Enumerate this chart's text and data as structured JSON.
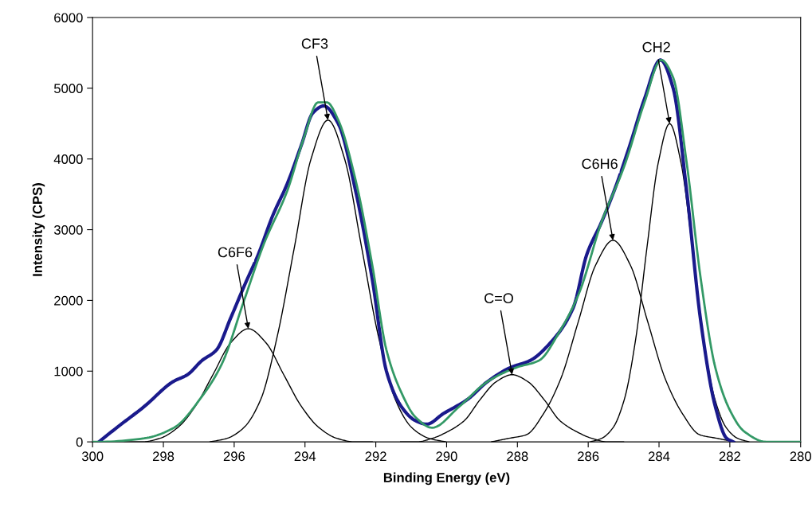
{
  "chart_data": {
    "type": "line",
    "xlabel": "Binding Energy (eV)",
    "ylabel": "Intensity (CPS)",
    "xlim": [
      300,
      280
    ],
    "xticks": [
      300,
      298,
      296,
      294,
      292,
      290,
      288,
      286,
      284,
      282,
      280
    ],
    "ylim": [
      0,
      6000
    ],
    "yticks": [
      0,
      1000,
      2000,
      3000,
      4000,
      5000,
      6000
    ],
    "grid": false,
    "legend": false,
    "marker": "none",
    "line_style": "solid",
    "series": [
      {
        "color": "#1a1a8c",
        "x": [
          299.82,
          299.32,
          298.54,
          297.73,
          297.32,
          296.91,
          296.5,
          296.1,
          295.72,
          295.32,
          294.91,
          294.5,
          294.1,
          293.78,
          293.47,
          293.06,
          292.57,
          292.1,
          291.7,
          291.28,
          290.88,
          290.56,
          290.09,
          289.41,
          288.85,
          288.2,
          287.64,
          287.07,
          286.42,
          286.04,
          285.63,
          285.23,
          284.82,
          284.41,
          283.96,
          283.6,
          283.22,
          282.82,
          282.41,
          282.09,
          281.9
        ],
        "values": [
          0,
          200,
          500,
          850,
          950,
          1150,
          1300,
          1750,
          2200,
          2650,
          3200,
          3650,
          4200,
          4650,
          4750,
          4500,
          3550,
          2300,
          1000,
          500,
          300,
          250,
          400,
          600,
          850,
          1050,
          1150,
          1400,
          1900,
          2650,
          3100,
          3600,
          4200,
          4850,
          5400,
          5000,
          3550,
          1700,
          500,
          50,
          0
        ]
      },
      {
        "color": "#339966",
        "x": [
          300,
          299.8,
          298.54,
          297.7,
          296.9,
          296.35,
          295.72,
          295.16,
          294.5,
          294.03,
          293.63,
          293.38,
          293.06,
          292.57,
          292.1,
          291.7,
          291.28,
          290.88,
          290.41,
          289.64,
          288.85,
          288.04,
          287.39,
          286.82,
          286.26,
          285.63,
          284.98,
          284.41,
          283.94,
          283.6,
          283.22,
          282.82,
          282.41,
          282.0,
          281.6,
          280.97,
          280.18,
          280
        ],
        "values": [
          0,
          0,
          50,
          200,
          650,
          1100,
          2000,
          2800,
          3550,
          4300,
          4800,
          4800,
          4550,
          3700,
          2500,
          1300,
          700,
          350,
          200,
          500,
          850,
          1050,
          1150,
          1550,
          2100,
          3100,
          3900,
          4800,
          5400,
          5150,
          3950,
          2300,
          1050,
          450,
          150,
          0,
          0,
          0
        ]
      },
      {
        "color": "#000000",
        "x": [
          299.1,
          298.6,
          298.1,
          297.6,
          297.1,
          296.6,
          296.1,
          295.6,
          295.1,
          294.6,
          294.1,
          293.6,
          293.1,
          292.6,
          292.1
        ],
        "values": [
          0,
          0,
          50,
          200,
          500,
          950,
          1400,
          1600,
          1400,
          950,
          500,
          200,
          50,
          0,
          0
        ]
      },
      {
        "color": "#000000",
        "x": [
          296.68,
          296.2,
          295.73,
          295.25,
          294.78,
          294.3,
          293.83,
          293.35,
          292.88,
          292.4,
          291.93,
          291.45,
          290.98,
          290.5,
          290.03
        ],
        "values": [
          0,
          50,
          200,
          600,
          1500,
          2750,
          4000,
          4550,
          4000,
          2750,
          1500,
          600,
          200,
          50,
          0
        ]
      },
      {
        "color": "#000000",
        "x": [
          291.3,
          290.85,
          290.4,
          289.95,
          289.5,
          289.05,
          288.6,
          288.15,
          287.7,
          287.25,
          286.8,
          286.35,
          285.9,
          285.45,
          285.0
        ],
        "values": [
          0,
          0,
          50,
          150,
          300,
          600,
          850,
          950,
          850,
          600,
          300,
          150,
          50,
          0,
          0
        ]
      },
      {
        "color": "#000000",
        "x": [
          288.73,
          288.24,
          287.75,
          287.26,
          286.77,
          286.28,
          285.79,
          285.3,
          284.81,
          284.32,
          283.83,
          283.34,
          282.85,
          282.36,
          281.87
        ],
        "values": [
          0,
          50,
          100,
          400,
          900,
          1700,
          2500,
          2850,
          2500,
          1700,
          900,
          400,
          100,
          50,
          0
        ]
      },
      {
        "color": "#000000",
        "x": [
          285.94,
          285.62,
          285.3,
          284.98,
          284.66,
          284.34,
          284.02,
          283.7,
          283.38,
          283.06,
          282.74,
          282.42,
          282.1,
          281.78,
          281.46
        ],
        "values": [
          0,
          50,
          200,
          600,
          1450,
          2750,
          3950,
          4500,
          3950,
          2750,
          1450,
          600,
          200,
          50,
          0
        ]
      }
    ],
    "annotations": [
      {
        "text": "C6F6",
        "x": 295.6,
        "y": 1600
      },
      {
        "text": "CF3",
        "x": 293.35,
        "y": 4550
      },
      {
        "text": "C=O",
        "x": 288.15,
        "y": 950
      },
      {
        "text": "C6H6",
        "x": 285.3,
        "y": 2850
      },
      {
        "text": "CH2",
        "x": 283.7,
        "y": 4500
      }
    ]
  }
}
